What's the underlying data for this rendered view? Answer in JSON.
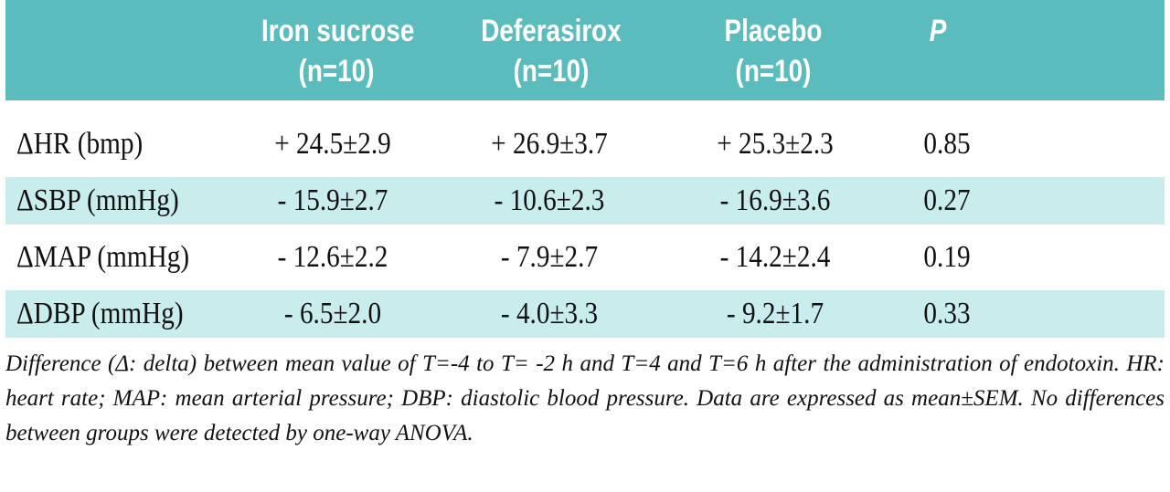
{
  "table": {
    "header_color": "#5bbcbd",
    "shade_color": "#c9ecec",
    "columns": [
      {
        "line1": "Iron sucrose",
        "line2": "(n=10)"
      },
      {
        "line1": "Deferasirox",
        "line2": "(n=10)"
      },
      {
        "line1": "Placebo",
        "line2": "(n=10)"
      },
      {
        "line1": "P",
        "line2": ""
      }
    ],
    "rows": [
      {
        "label": "ΔHR (bmp)",
        "iron": "+ 24.5±2.9",
        "defer": "+ 26.9±3.7",
        "placebo": "+ 25.3±2.3",
        "p": "0.85"
      },
      {
        "label": "ΔSBP (mmHg)",
        "iron": "- 15.9±2.7",
        "defer": "- 10.6±2.3",
        "placebo": "- 16.9±3.6",
        "p": "0.27"
      },
      {
        "label": "ΔMAP (mmHg)",
        "iron": "- 12.6±2.2",
        "defer": "- 7.9±2.7",
        "placebo": "- 14.2±2.4",
        "p": "0.19"
      },
      {
        "label": "ΔDBP (mmHg)",
        "iron": "- 6.5±2.0",
        "defer": "- 4.0±3.3",
        "placebo": "- 9.2±1.7",
        "p": "0.33"
      }
    ]
  },
  "footnote": "Difference (Δ: delta) between mean value of T=-4 to T= -2 h and T=4 and T=6 h after the administration of endotoxin. HR: heart rate; MAP: mean arterial pressure; DBP: diastolic blood pressure. Data are expressed as mean±SEM. No differences between groups were detected by one-way ANOVA."
}
